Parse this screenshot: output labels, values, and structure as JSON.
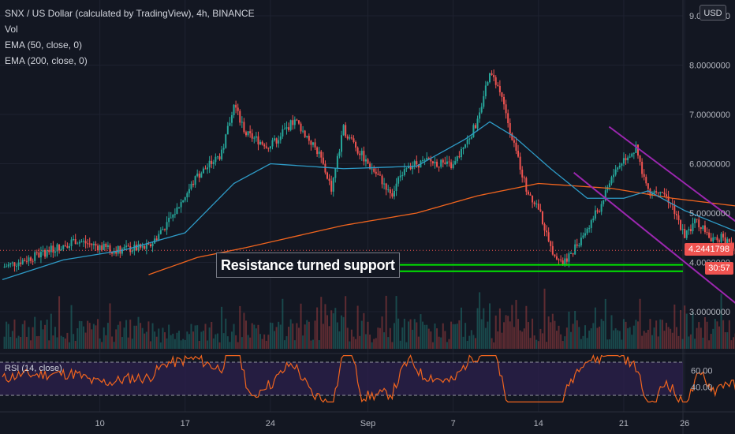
{
  "header": {
    "title": "SNX / US Dollar (calculated by TradingView), 4h, BINANCE",
    "indicators": [
      "Vol",
      "EMA (50, close, 0)",
      "EMA (200, close, 0)"
    ]
  },
  "currency_button": "USD",
  "last_price": {
    "value": "4.2441798",
    "color": "#ef5350"
  },
  "countdown": "30:57",
  "annotation": "Resistance turned support",
  "rsi_label": "RSI (14, close)",
  "colors": {
    "up": "#26a69a",
    "down": "#ef5350",
    "ema50": "#2e9bc7",
    "ema200": "#f0641e",
    "channel": "#9c27b0",
    "support": "#00e600",
    "rsi_line": "#f0641e",
    "rsi_band": "#2a1f4a"
  },
  "chart_data": {
    "type": "candlestick",
    "title": "SNX / US Dollar (calculated by TradingView), 4h, BINANCE",
    "y_ticks": [
      "3.0000000",
      "4.0000000",
      "5.0000000",
      "6.0000000",
      "7.0000000",
      "8.0000000",
      "9.0000000"
    ],
    "x_ticks": [
      "10",
      "17",
      "24",
      "Sep",
      "7",
      "14",
      "21",
      "26"
    ],
    "ylim": [
      2.2,
      9.2
    ],
    "price_path": [
      [
        0,
        3.9
      ],
      [
        3,
        4.15
      ],
      [
        6,
        4.45
      ],
      [
        9,
        4.25
      ],
      [
        12,
        4.3
      ],
      [
        14,
        4.95
      ],
      [
        16,
        5.75
      ],
      [
        18,
        6.2
      ],
      [
        19,
        7.2
      ],
      [
        20,
        6.6
      ],
      [
        22,
        6.35
      ],
      [
        24,
        6.9
      ],
      [
        26,
        6.2
      ],
      [
        27,
        5.5
      ],
      [
        28,
        6.7
      ],
      [
        30,
        6.0
      ],
      [
        32,
        5.4
      ],
      [
        33,
        5.95
      ],
      [
        35,
        6.05
      ],
      [
        37,
        5.95
      ],
      [
        39,
        6.85
      ],
      [
        40,
        7.9
      ],
      [
        41,
        7.3
      ],
      [
        42,
        6.4
      ],
      [
        43,
        5.5
      ],
      [
        44,
        5.1
      ],
      [
        45,
        4.3
      ],
      [
        46,
        4.0
      ],
      [
        47,
        4.3
      ],
      [
        48,
        4.7
      ],
      [
        49,
        5.1
      ],
      [
        50,
        5.75
      ],
      [
        51,
        6.1
      ],
      [
        52,
        6.3
      ],
      [
        53,
        5.4
      ],
      [
        54,
        5.5
      ],
      [
        55,
        5.15
      ],
      [
        56,
        4.55
      ],
      [
        57,
        4.85
      ],
      [
        58,
        4.5
      ],
      [
        59,
        4.5
      ],
      [
        60,
        4.3
      ],
      [
        61,
        3.95
      ],
      [
        62,
        3.65
      ],
      [
        63,
        3.75
      ],
      [
        64,
        4.0
      ],
      [
        64.8,
        4.24
      ]
    ],
    "ema50_path": [
      [
        0,
        3.65
      ],
      [
        5,
        4.05
      ],
      [
        10,
        4.25
      ],
      [
        15,
        4.6
      ],
      [
        19,
        5.6
      ],
      [
        22,
        6.0
      ],
      [
        28,
        5.9
      ],
      [
        34,
        5.95
      ],
      [
        38,
        6.5
      ],
      [
        40,
        6.85
      ],
      [
        42,
        6.55
      ],
      [
        45,
        5.9
      ],
      [
        48,
        5.3
      ],
      [
        51,
        5.3
      ],
      [
        53,
        5.45
      ],
      [
        56,
        5.05
      ],
      [
        59,
        4.75
      ],
      [
        62,
        4.45
      ],
      [
        64.8,
        4.35
      ]
    ],
    "ema200_path": [
      [
        12,
        3.75
      ],
      [
        16,
        4.1
      ],
      [
        20,
        4.3
      ],
      [
        28,
        4.75
      ],
      [
        34,
        5.0
      ],
      [
        39,
        5.35
      ],
      [
        44,
        5.6
      ],
      [
        50,
        5.5
      ],
      [
        55,
        5.3
      ],
      [
        61,
        5.12
      ],
      [
        64.8,
        4.98
      ]
    ],
    "support_levels": [
      3.95,
      3.82
    ],
    "channel_upper": [
      [
        49.8,
        6.75
      ],
      [
        68.3,
        3.33
      ]
    ],
    "channel_lower": [
      [
        46.9,
        5.82
      ],
      [
        62.1,
        2.79
      ]
    ],
    "rsi": {
      "label": "RSI (14, close)",
      "y_ticks": [
        "40.00",
        "60.00"
      ],
      "bands": [
        70,
        30
      ]
    }
  }
}
